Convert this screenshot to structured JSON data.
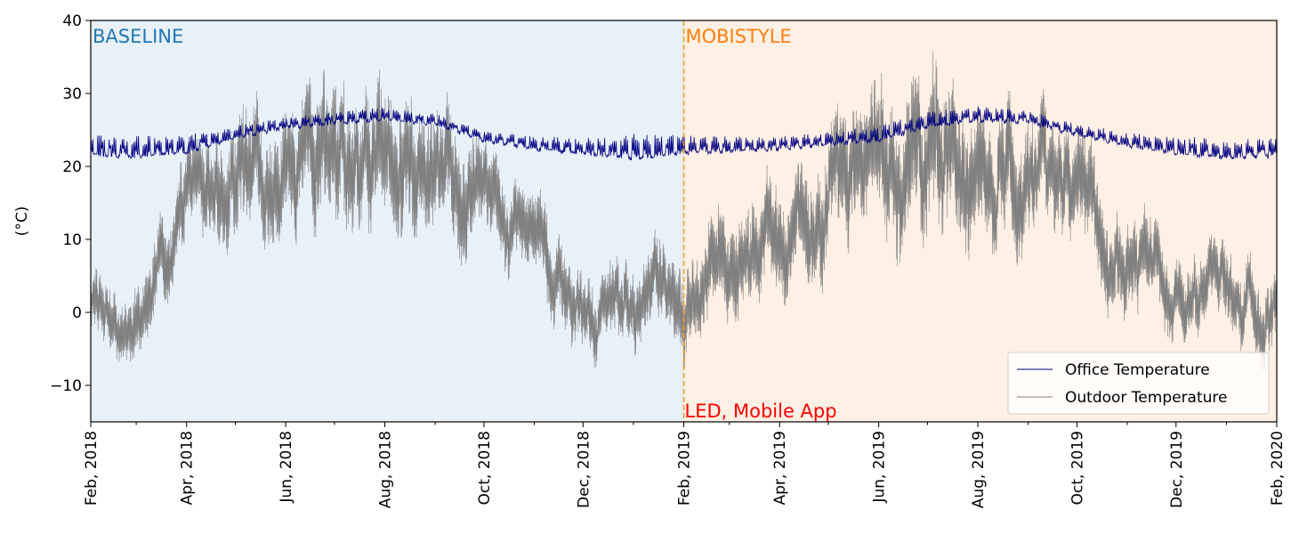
{
  "chart_data": {
    "type": "line",
    "ylabel": "(°C)",
    "ylim": [
      -15,
      40
    ],
    "y_ticks": [
      -10,
      0,
      10,
      20,
      30,
      40
    ],
    "y_tick_labels": [
      "−10",
      "0",
      "10",
      "20",
      "30",
      "40"
    ],
    "xlim": [
      "2018-02-01",
      "2020-02-01"
    ],
    "x_ticks": [
      "2018-02-01",
      "2018-04-01",
      "2018-06-01",
      "2018-08-01",
      "2018-10-01",
      "2018-12-01",
      "2019-02-01",
      "2019-04-01",
      "2019-06-01",
      "2019-08-01",
      "2019-10-01",
      "2019-12-01",
      "2020-02-01"
    ],
    "x_tick_labels": [
      "Feb, 2018",
      "Apr, 2018",
      "Jun, 2018",
      "Aug, 2018",
      "Oct, 2018",
      "Dec, 2018",
      "Feb, 2019",
      "Apr, 2019",
      "Jun, 2019",
      "Aug, 2019",
      "Oct, 2019",
      "Dec, 2019",
      "Feb, 2020"
    ],
    "grid": false,
    "legend_position": "lower-right",
    "periods": [
      {
        "label": "BASELINE",
        "start": "2018-02-01",
        "end": "2019-02-01",
        "fill": "#e8f0f8",
        "label_color": "#1f77b4"
      },
      {
        "label": "MOBISTYLE",
        "start": "2019-02-01",
        "end": "2020-02-01",
        "fill": "#fef0e4",
        "label_color": "#ff7f0e"
      }
    ],
    "event": {
      "date": "2019-02-01",
      "label": "LED, Mobile App",
      "line_color": "#f0a020",
      "label_color": "#ff0000"
    },
    "series": [
      {
        "name": "Office Temperature",
        "color": "#000080",
        "x": [
          "2018-02-01",
          "2018-03-01",
          "2018-04-01",
          "2018-05-01",
          "2018-06-01",
          "2018-07-01",
          "2018-08-01",
          "2018-09-01",
          "2018-10-01",
          "2018-11-01",
          "2018-12-01",
          "2019-01-01",
          "2019-02-01",
          "2019-03-01",
          "2019-04-01",
          "2019-05-01",
          "2019-06-01",
          "2019-07-01",
          "2019-08-01",
          "2019-09-01",
          "2019-10-01",
          "2019-11-01",
          "2019-12-01",
          "2020-01-01",
          "2020-02-01"
        ],
        "y": [
          22.5,
          22.3,
          22.8,
          24.5,
          25.8,
          26.5,
          27.0,
          26.3,
          24.0,
          23.0,
          22.5,
          22.3,
          22.7,
          22.8,
          23.0,
          23.6,
          24.3,
          26.2,
          27.0,
          26.6,
          24.8,
          23.5,
          22.6,
          22.1,
          22.3
        ],
        "fluct": [
          1.6,
          1.7,
          1.5,
          1.0,
          0.8,
          1.0,
          1.0,
          0.9,
          0.8,
          1.0,
          1.3,
          2.0,
          1.4,
          1.2,
          1.0,
          1.0,
          1.2,
          1.2,
          1.1,
          1.0,
          0.9,
          1.1,
          1.4,
          1.5,
          1.4
        ]
      },
      {
        "name": "Outdoor Temperature",
        "color": "#808080",
        "x": [
          "2018-02-01",
          "2018-02-15",
          "2018-03-01",
          "2018-03-15",
          "2018-04-01",
          "2018-05-01",
          "2018-06-01",
          "2018-07-01",
          "2018-08-01",
          "2018-09-01",
          "2018-09-20",
          "2018-10-01",
          "2018-11-01",
          "2018-12-01",
          "2019-01-01",
          "2019-02-01",
          "2019-03-01",
          "2019-04-01",
          "2019-05-01",
          "2019-06-01",
          "2019-07-01",
          "2019-08-01",
          "2019-09-01",
          "2019-10-01",
          "2019-11-01",
          "2019-12-01",
          "2020-01-01",
          "2020-02-01"
        ],
        "y": [
          1.0,
          0.5,
          -2.0,
          5.0,
          12.0,
          17.0,
          20.0,
          22.0,
          23.0,
          20.5,
          19.0,
          12.0,
          10.0,
          0.5,
          0.0,
          2.0,
          7.0,
          10.0,
          15.0,
          19.0,
          24.0,
          23.0,
          19.0,
          14.0,
          8.0,
          4.0,
          2.0,
          3.0
        ],
        "amp": [
          4.0,
          4.0,
          5.0,
          6.0,
          6.0,
          8.0,
          8.0,
          9.0,
          9.0,
          8.0,
          8.0,
          6.0,
          6.0,
          5.0,
          5.0,
          6.0,
          7.0,
          7.0,
          8.0,
          9.0,
          10.0,
          9.0,
          8.0,
          7.0,
          6.0,
          5.0,
          5.0,
          5.0
        ]
      }
    ]
  }
}
